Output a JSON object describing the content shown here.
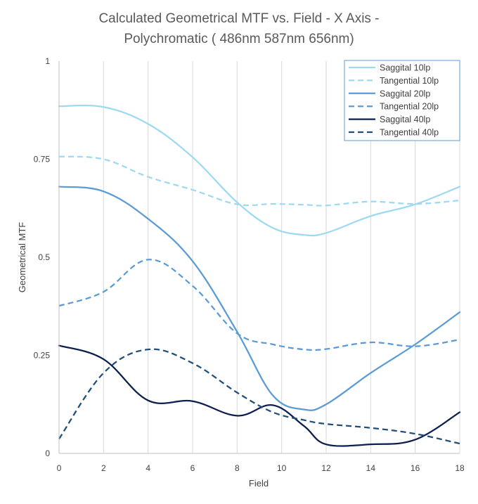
{
  "chart_data": {
    "type": "line",
    "title_lines": [
      "Calculated Geometrical MTF vs. Field -  X Axis -",
      "Polychromatic ( 486nm 587nm 656nm)"
    ],
    "xlabel": "Field",
    "ylabel": "Geometrical MTF",
    "xlim": [
      0,
      18
    ],
    "ylim": [
      0,
      1
    ],
    "x_ticks": [
      "0",
      "2",
      "4",
      "6",
      "8",
      "10",
      "12",
      "14",
      "16",
      "18"
    ],
    "y_ticks": [
      "0",
      "0.25",
      "0.5",
      "0.75",
      "1"
    ],
    "grid": "vertical",
    "legend_position": "top-right",
    "x": [
      0,
      2,
      4,
      6,
      8,
      9.6,
      11,
      12,
      14,
      16,
      18
    ],
    "series": [
      {
        "name": "Saggital 10lp",
        "color": "#9dd9f3",
        "dash": "solid",
        "values": [
          0.885,
          0.883,
          0.84,
          0.755,
          0.64,
          0.575,
          0.557,
          0.562,
          0.605,
          0.635,
          0.68
        ]
      },
      {
        "name": "Tangential 10lp",
        "color": "#9dd9f3",
        "dash": "dashed",
        "values": [
          0.757,
          0.75,
          0.705,
          0.672,
          0.635,
          0.636,
          0.634,
          0.632,
          0.642,
          0.636,
          0.645
        ]
      },
      {
        "name": "Saggital 20lp",
        "color": "#5b9bd5",
        "dash": "solid",
        "values": [
          0.68,
          0.668,
          0.598,
          0.49,
          0.31,
          0.148,
          0.112,
          0.125,
          0.205,
          0.278,
          0.36
        ]
      },
      {
        "name": "Tangential 20lp",
        "color": "#5b9bd5",
        "dash": "dashed",
        "values": [
          0.376,
          0.412,
          0.494,
          0.427,
          0.306,
          0.278,
          0.265,
          0.266,
          0.283,
          0.273,
          0.29
        ]
      },
      {
        "name": "Saggital 40lp",
        "color": "#0d1f4f",
        "dash": "solid",
        "values": [
          0.275,
          0.24,
          0.135,
          0.133,
          0.096,
          0.123,
          0.07,
          0.023,
          0.023,
          0.035,
          0.105
        ]
      },
      {
        "name": "Tangential 40lp",
        "color": "#1f4e79",
        "dash": "dashed",
        "values": [
          0.037,
          0.205,
          0.265,
          0.23,
          0.155,
          0.105,
          0.085,
          0.075,
          0.065,
          0.05,
          0.025
        ]
      }
    ]
  }
}
